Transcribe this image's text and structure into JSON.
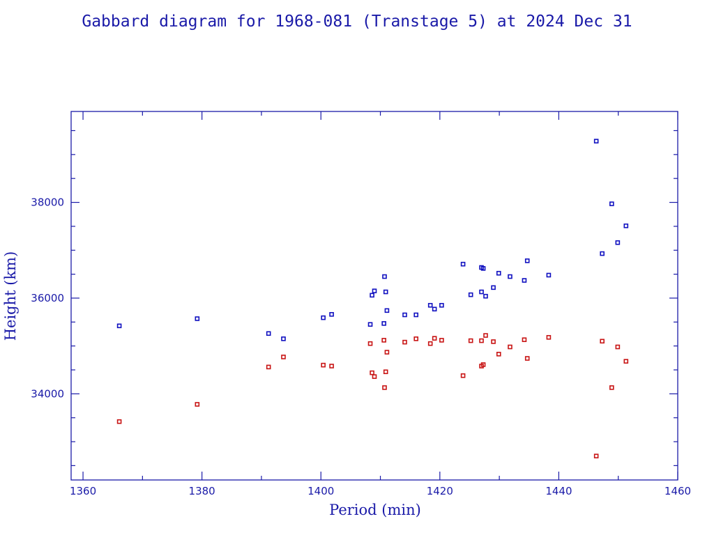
{
  "colors": {
    "axis": "#1a1aa8",
    "apogee": "#1010c0",
    "perigee": "#c81414",
    "background": "#ffffff"
  },
  "chart_data": {
    "type": "scatter",
    "title": "Gabbard diagram for 1968-081 (Transtage 5) at 2024 Dec 31",
    "xlabel": "Period (min)",
    "ylabel": "Height (km)",
    "xlim": [
      1358,
      1460
    ],
    "ylim": [
      32200,
      39900
    ],
    "xticks": [
      1360,
      1380,
      1400,
      1420,
      1440,
      1460
    ],
    "yticks": [
      34000,
      36000,
      38000
    ],
    "grid": false,
    "legend": "none",
    "series": [
      {
        "color": "#1010c0",
        "x": [
          1366.1,
          1379.2,
          1391.2,
          1393.7,
          1400.4,
          1401.8,
          1408.3,
          1408.6,
          1409.0,
          1410.6,
          1410.7,
          1410.9,
          1411.1,
          1414.1,
          1416.0,
          1418.4,
          1419.1,
          1420.3,
          1423.9,
          1425.2,
          1427.0,
          1427.0,
          1427.3,
          1427.7,
          1429.0,
          1429.9,
          1431.8,
          1434.2,
          1434.7,
          1438.3,
          1446.3,
          1447.3,
          1448.9,
          1449.9,
          1451.3
        ],
        "y": [
          35420,
          35570,
          35260,
          35150,
          35590,
          35660,
          35450,
          36060,
          36150,
          35470,
          36450,
          36130,
          35740,
          35650,
          35650,
          35850,
          35770,
          35850,
          36710,
          36070,
          36640,
          36130,
          36620,
          36040,
          36220,
          36520,
          36450,
          36370,
          36780,
          36480,
          39280,
          36930,
          37970,
          37160,
          37510
        ]
      },
      {
        "color": "#c81414",
        "x": [
          1366.1,
          1379.2,
          1391.2,
          1393.7,
          1400.4,
          1401.8,
          1408.3,
          1408.6,
          1409.0,
          1410.6,
          1410.7,
          1410.9,
          1411.1,
          1414.1,
          1416.0,
          1418.4,
          1419.1,
          1420.3,
          1423.9,
          1425.2,
          1427.0,
          1427.0,
          1427.3,
          1427.7,
          1429.0,
          1429.9,
          1431.8,
          1434.2,
          1434.7,
          1438.3,
          1446.3,
          1447.3,
          1448.9,
          1449.9,
          1451.3
        ],
        "y": [
          33420,
          33780,
          34560,
          34770,
          34600,
          34580,
          35050,
          34440,
          34360,
          35120,
          34130,
          34460,
          34870,
          35080,
          35150,
          35050,
          35160,
          35120,
          34380,
          35110,
          34580,
          35110,
          34610,
          35220,
          35090,
          34830,
          34980,
          35130,
          34740,
          35180,
          32700,
          35100,
          34130,
          34980,
          34680
        ]
      }
    ]
  }
}
